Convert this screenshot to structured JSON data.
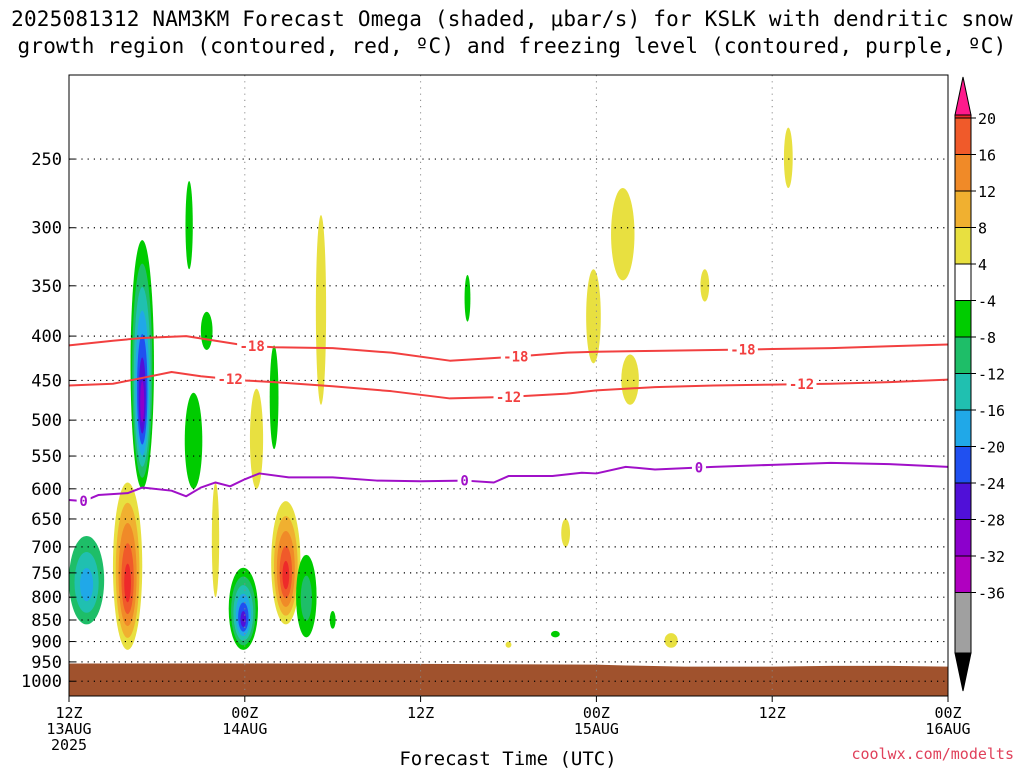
{
  "header": {
    "title_line1": "2025081312 NAM3KM Forecast Omega (shaded, μbar/s) for KSLK with dendritic snow",
    "title_line2": "growth region (contoured, red, ºC) and freezing level (contoured, purple, ºC)"
  },
  "footer": {
    "credit": "coolwx.com/modelts"
  },
  "chart_data": {
    "type": "time-height",
    "title": "2025081312 NAM3KM Forecast Omega (shaded, μbar/s) for KSLK with dendritic snow growth region (contoured, red, ºC) and freezing level (contoured, purple, ºC)",
    "xlabel": "Forecast Time (UTC)",
    "ylabel": "",
    "x_range_hours": [
      0,
      60
    ],
    "x_ticks": [
      {
        "hour": 0,
        "lines": [
          "12Z",
          "13AUG",
          "2025"
        ]
      },
      {
        "hour": 12,
        "lines": [
          "00Z",
          "14AUG"
        ]
      },
      {
        "hour": 24,
        "lines": [
          "12Z"
        ]
      },
      {
        "hour": 36,
        "lines": [
          "00Z",
          "15AUG"
        ]
      },
      {
        "hour": 48,
        "lines": [
          "12Z"
        ]
      },
      {
        "hour": 60,
        "lines": [
          "00Z",
          "16AUG"
        ]
      }
    ],
    "y_scale": "log-pressure",
    "y_range_hpa": [
      1040,
      200
    ],
    "y_ticks": [
      250,
      300,
      350,
      400,
      450,
      500,
      550,
      600,
      650,
      700,
      750,
      800,
      850,
      900,
      950,
      1000
    ],
    "grid": true,
    "colorbar": {
      "labels": [
        20,
        16,
        12,
        8,
        4,
        -4,
        -8,
        -12,
        -16,
        -20,
        -24,
        -28,
        -32,
        -36
      ],
      "colors": [
        "#ff1a8c",
        "#ee2a2a",
        "#f05a2a",
        "#f08a28",
        "#f0b030",
        "#e8e040",
        "#ffffff",
        "#00cc00",
        "#1ebe68",
        "#20c0b0",
        "#20a8e8",
        "#2050f0",
        "#5010d8",
        "#8c00cc",
        "#b000c0",
        "#a0a0a0",
        "#000000"
      ]
    },
    "contours": [
      {
        "label": "-18",
        "color": "#f24040",
        "points": [
          [
            0,
            410
          ],
          [
            3,
            405
          ],
          [
            5,
            402
          ],
          [
            8,
            400
          ],
          [
            10,
            405
          ],
          [
            12,
            410
          ],
          [
            14,
            412
          ],
          [
            18,
            413
          ],
          [
            22,
            418
          ],
          [
            26,
            427
          ],
          [
            30,
            423
          ],
          [
            34,
            418
          ],
          [
            36,
            417
          ],
          [
            40,
            416
          ],
          [
            44,
            415
          ],
          [
            48,
            414
          ],
          [
            52,
            413
          ],
          [
            56,
            411
          ],
          [
            60,
            409
          ]
        ]
      },
      {
        "label": "-12",
        "color": "#f24040",
        "points": [
          [
            0,
            456
          ],
          [
            3,
            454
          ],
          [
            5,
            447
          ],
          [
            7,
            440
          ],
          [
            9,
            445
          ],
          [
            12,
            450
          ],
          [
            14,
            452
          ],
          [
            18,
            457
          ],
          [
            22,
            463
          ],
          [
            26,
            472
          ],
          [
            30,
            470
          ],
          [
            34,
            466
          ],
          [
            36,
            462
          ],
          [
            40,
            458
          ],
          [
            44,
            456
          ],
          [
            48,
            455
          ],
          [
            52,
            454
          ],
          [
            56,
            452
          ],
          [
            60,
            449
          ]
        ]
      },
      {
        "label": "0",
        "color": "#a010c8",
        "points": [
          [
            0,
            618
          ],
          [
            1,
            620
          ],
          [
            2,
            610
          ],
          [
            4,
            607
          ],
          [
            5,
            598
          ],
          [
            7,
            603
          ],
          [
            8,
            612
          ],
          [
            9,
            598
          ],
          [
            10,
            590
          ],
          [
            11,
            596
          ],
          [
            12,
            585
          ],
          [
            13,
            576
          ],
          [
            15,
            582
          ],
          [
            18,
            582
          ],
          [
            21,
            587
          ],
          [
            24,
            588
          ],
          [
            27,
            587
          ],
          [
            29,
            590
          ],
          [
            30,
            580
          ],
          [
            33,
            580
          ],
          [
            35,
            575
          ],
          [
            36,
            576
          ],
          [
            38,
            566
          ],
          [
            40,
            570
          ],
          [
            44,
            566
          ],
          [
            48,
            563
          ],
          [
            52,
            560
          ],
          [
            56,
            562
          ],
          [
            60,
            566
          ]
        ]
      }
    ],
    "omega_features": [
      {
        "hour": 1.2,
        "top": 680,
        "bottom": 860,
        "hw": 1.2,
        "levels": [
          -8,
          -12,
          -16
        ]
      },
      {
        "hour": 4.0,
        "top": 590,
        "bottom": 920,
        "hw": 1.0,
        "levels": [
          4,
          8,
          12,
          16,
          20
        ]
      },
      {
        "hour": 5.0,
        "top": 310,
        "bottom": 600,
        "hw": 0.8,
        "levels": [
          -4,
          -8,
          -12,
          -16,
          -20,
          -24,
          -28
        ]
      },
      {
        "hour": 8.5,
        "top": 465,
        "bottom": 600,
        "hw": 0.6,
        "levels": [
          -4
        ]
      },
      {
        "hour": 8.2,
        "top": 265,
        "bottom": 335,
        "hw": 0.25,
        "levels": [
          -4
        ]
      },
      {
        "hour": 9.4,
        "top": 375,
        "bottom": 415,
        "hw": 0.4,
        "levels": [
          -4
        ]
      },
      {
        "hour": 10.0,
        "top": 590,
        "bottom": 800,
        "hw": 0.25,
        "levels": [
          4
        ]
      },
      {
        "hour": 11.9,
        "top": 740,
        "bottom": 920,
        "hw": 1.0,
        "levels": [
          -4,
          -8,
          -12,
          -16,
          -20,
          -24
        ]
      },
      {
        "hour": 12.8,
        "top": 460,
        "bottom": 600,
        "hw": 0.45,
        "levels": [
          4
        ]
      },
      {
        "hour": 14.8,
        "top": 620,
        "bottom": 860,
        "hw": 1.0,
        "levels": [
          4,
          8,
          12,
          16,
          20
        ]
      },
      {
        "hour": 14.0,
        "top": 410,
        "bottom": 540,
        "hw": 0.3,
        "levels": [
          -4
        ]
      },
      {
        "hour": 16.2,
        "top": 715,
        "bottom": 890,
        "hw": 0.7,
        "levels": [
          -4,
          -8
        ]
      },
      {
        "hour": 17.2,
        "top": 290,
        "bottom": 480,
        "hw": 0.35,
        "levels": [
          4
        ]
      },
      {
        "hour": 18.0,
        "top": 830,
        "bottom": 870,
        "hw": 0.2,
        "levels": [
          -4
        ]
      },
      {
        "hour": 27.2,
        "top": 340,
        "bottom": 385,
        "hw": 0.2,
        "levels": [
          -4
        ]
      },
      {
        "hour": 30.0,
        "top": 900,
        "bottom": 915,
        "hw": 0.2,
        "levels": [
          4
        ]
      },
      {
        "hour": 33.2,
        "top": 875,
        "bottom": 890,
        "hw": 0.3,
        "levels": [
          -4
        ]
      },
      {
        "hour": 33.9,
        "top": 650,
        "bottom": 700,
        "hw": 0.3,
        "levels": [
          4
        ]
      },
      {
        "hour": 35.8,
        "top": 335,
        "bottom": 430,
        "hw": 0.5,
        "levels": [
          4
        ]
      },
      {
        "hour": 37.8,
        "top": 270,
        "bottom": 345,
        "hw": 0.8,
        "levels": [
          4
        ]
      },
      {
        "hour": 38.3,
        "top": 420,
        "bottom": 480,
        "hw": 0.6,
        "levels": [
          4
        ]
      },
      {
        "hour": 41.1,
        "top": 880,
        "bottom": 915,
        "hw": 0.45,
        "levels": [
          4
        ]
      },
      {
        "hour": 43.4,
        "top": 335,
        "bottom": 365,
        "hw": 0.3,
        "levels": [
          4
        ]
      },
      {
        "hour": 49.1,
        "top": 230,
        "bottom": 270,
        "hw": 0.3,
        "levels": [
          4
        ]
      }
    ],
    "terrain": {
      "color": "#a0522d",
      "points": [
        [
          0,
          954
        ],
        [
          12,
          954
        ],
        [
          24,
          955
        ],
        [
          36,
          957
        ],
        [
          38,
          959
        ],
        [
          42,
          962
        ],
        [
          48,
          962
        ],
        [
          52,
          960
        ],
        [
          56,
          960
        ],
        [
          60,
          962
        ]
      ]
    }
  }
}
